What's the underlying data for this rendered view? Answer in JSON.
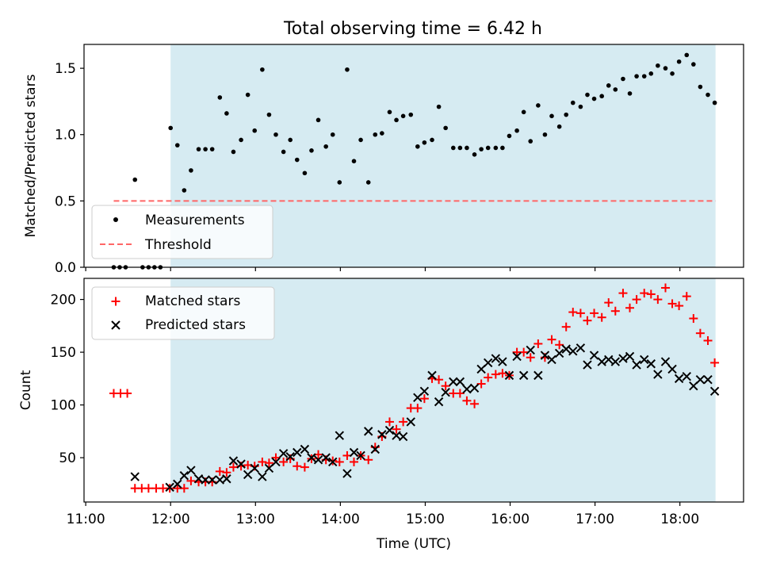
{
  "figure_title": "Total observing time = 6.42 h",
  "colors": {
    "window_fill": "#add8e6",
    "measurement": "#000000",
    "threshold": "#ff6666",
    "matched": "#ff0000",
    "predicted": "#000000"
  },
  "chart_data": [
    {
      "type": "scatter",
      "panel": "top",
      "title": "Total observing time = 6.42 h",
      "xlabel": "",
      "ylabel": "Matched/Predicted stars",
      "xlim": [
        10.98,
        18.75
      ],
      "ylim": [
        0.0,
        1.68
      ],
      "yticks": [
        0.0,
        0.5,
        1.0,
        1.5
      ],
      "ytick_labels": [
        "0.0",
        "0.5",
        "1.0",
        "1.5"
      ],
      "xticks": [
        11,
        12,
        13,
        14,
        15,
        16,
        17,
        18
      ],
      "shaded_window": [
        12.0,
        18.42
      ],
      "legend_position": "lower-left",
      "legend": [
        "Measurements",
        "Threshold"
      ],
      "threshold": {
        "name": "Threshold",
        "y": 0.5,
        "x_range": [
          11.33,
          18.42
        ]
      },
      "series": [
        {
          "name": "Measurements",
          "marker": "dot",
          "points": [
            [
              11.33,
              0.0
            ],
            [
              11.4,
              0.0
            ],
            [
              11.47,
              0.0
            ],
            [
              11.58,
              0.66
            ],
            [
              11.67,
              0.0
            ],
            [
              11.74,
              0.0
            ],
            [
              11.81,
              0.0
            ],
            [
              11.88,
              0.0
            ],
            [
              12.0,
              1.05
            ],
            [
              12.08,
              0.92
            ],
            [
              12.16,
              0.58
            ],
            [
              12.24,
              0.73
            ],
            [
              12.33,
              0.89
            ],
            [
              12.41,
              0.89
            ],
            [
              12.49,
              0.89
            ],
            [
              12.58,
              1.28
            ],
            [
              12.66,
              1.16
            ],
            [
              12.74,
              0.87
            ],
            [
              12.83,
              0.96
            ],
            [
              12.91,
              1.3
            ],
            [
              12.99,
              1.03
            ],
            [
              13.08,
              1.49
            ],
            [
              13.16,
              1.15
            ],
            [
              13.24,
              1.0
            ],
            [
              13.33,
              0.87
            ],
            [
              13.41,
              0.96
            ],
            [
              13.49,
              0.81
            ],
            [
              13.58,
              0.71
            ],
            [
              13.66,
              0.88
            ],
            [
              13.74,
              1.11
            ],
            [
              13.83,
              0.91
            ],
            [
              13.91,
              1.0
            ],
            [
              13.99,
              0.64
            ],
            [
              14.08,
              1.49
            ],
            [
              14.16,
              0.8
            ],
            [
              14.24,
              0.96
            ],
            [
              14.33,
              0.64
            ],
            [
              14.41,
              1.0
            ],
            [
              14.49,
              1.01
            ],
            [
              14.58,
              1.17
            ],
            [
              14.66,
              1.11
            ],
            [
              14.74,
              1.14
            ],
            [
              14.83,
              1.15
            ],
            [
              14.91,
              0.91
            ],
            [
              14.99,
              0.94
            ],
            [
              15.08,
              0.96
            ],
            [
              15.16,
              1.21
            ],
            [
              15.24,
              1.05
            ],
            [
              15.33,
              0.9
            ],
            [
              15.41,
              0.9
            ],
            [
              15.49,
              0.9
            ],
            [
              15.58,
              0.85
            ],
            [
              15.66,
              0.89
            ],
            [
              15.74,
              0.9
            ],
            [
              15.83,
              0.9
            ],
            [
              15.91,
              0.9
            ],
            [
              15.99,
              0.99
            ],
            [
              16.08,
              1.03
            ],
            [
              16.16,
              1.17
            ],
            [
              16.24,
              0.95
            ],
            [
              16.33,
              1.22
            ],
            [
              16.41,
              1.0
            ],
            [
              16.49,
              1.14
            ],
            [
              16.58,
              1.06
            ],
            [
              16.66,
              1.15
            ],
            [
              16.74,
              1.24
            ],
            [
              16.83,
              1.21
            ],
            [
              16.91,
              1.3
            ],
            [
              16.99,
              1.27
            ],
            [
              17.08,
              1.29
            ],
            [
              17.16,
              1.37
            ],
            [
              17.24,
              1.34
            ],
            [
              17.33,
              1.42
            ],
            [
              17.41,
              1.31
            ],
            [
              17.49,
              1.44
            ],
            [
              17.58,
              1.44
            ],
            [
              17.66,
              1.46
            ],
            [
              17.74,
              1.52
            ],
            [
              17.83,
              1.5
            ],
            [
              17.91,
              1.46
            ],
            [
              17.99,
              1.55
            ],
            [
              18.08,
              1.6
            ],
            [
              18.16,
              1.53
            ],
            [
              18.24,
              1.36
            ],
            [
              18.33,
              1.3
            ],
            [
              18.41,
              1.24
            ]
          ]
        }
      ]
    },
    {
      "type": "scatter",
      "panel": "bottom",
      "xlabel": "Time (UTC)",
      "ylabel": "Count",
      "xlim": [
        10.98,
        18.75
      ],
      "ylim": [
        8,
        220
      ],
      "yticks": [
        50,
        100,
        150,
        200
      ],
      "ytick_labels": [
        "50",
        "100",
        "150",
        "200"
      ],
      "xticks": [
        11,
        12,
        13,
        14,
        15,
        16,
        17,
        18
      ],
      "xtick_labels": [
        "11:00",
        "12:00",
        "13:00",
        "14:00",
        "15:00",
        "16:00",
        "17:00",
        "18:00"
      ],
      "shaded_window": [
        12.0,
        18.42
      ],
      "legend_position": "upper-left",
      "legend": [
        "Matched stars",
        "Predicted stars"
      ],
      "series": [
        {
          "name": "Matched stars",
          "marker": "plus",
          "points": [
            [
              11.33,
              111
            ],
            [
              11.41,
              111
            ],
            [
              11.49,
              111
            ],
            [
              11.58,
              21
            ],
            [
              11.66,
              21
            ],
            [
              11.74,
              21
            ],
            [
              11.83,
              21
            ],
            [
              11.91,
              21
            ],
            [
              11.99,
              21
            ],
            [
              12.08,
              21
            ],
            [
              12.16,
              21
            ],
            [
              12.24,
              28
            ],
            [
              12.33,
              27
            ],
            [
              12.41,
              27
            ],
            [
              12.49,
              27
            ],
            [
              12.58,
              37
            ],
            [
              12.66,
              36
            ],
            [
              12.74,
              41
            ],
            [
              12.83,
              42
            ],
            [
              12.91,
              43
            ],
            [
              12.99,
              42
            ],
            [
              13.08,
              46
            ],
            [
              13.16,
              45
            ],
            [
              13.24,
              50
            ],
            [
              13.33,
              46
            ],
            [
              13.41,
              49
            ],
            [
              13.49,
              42
            ],
            [
              13.58,
              41
            ],
            [
              13.66,
              49
            ],
            [
              13.74,
              53
            ],
            [
              13.83,
              48
            ],
            [
              13.91,
              47
            ],
            [
              13.99,
              46
            ],
            [
              14.08,
              52
            ],
            [
              14.16,
              46
            ],
            [
              14.24,
              52
            ],
            [
              14.33,
              48
            ],
            [
              14.41,
              60
            ],
            [
              14.49,
              70
            ],
            [
              14.58,
              84
            ],
            [
              14.66,
              77
            ],
            [
              14.74,
              84
            ],
            [
              14.83,
              97
            ],
            [
              14.91,
              97
            ],
            [
              14.99,
              106
            ],
            [
              15.08,
              125
            ],
            [
              15.16,
              124
            ],
            [
              15.24,
              118
            ],
            [
              15.33,
              111
            ],
            [
              15.41,
              111
            ],
            [
              15.49,
              104
            ],
            [
              15.58,
              101
            ],
            [
              15.66,
              120
            ],
            [
              15.74,
              126
            ],
            [
              15.83,
              129
            ],
            [
              15.91,
              130
            ],
            [
              15.99,
              128
            ],
            [
              16.08,
              150
            ],
            [
              16.16,
              150
            ],
            [
              16.24,
              145
            ],
            [
              16.33,
              158
            ],
            [
              16.41,
              145
            ],
            [
              16.49,
              162
            ],
            [
              16.58,
              157
            ],
            [
              16.66,
              174
            ],
            [
              16.74,
              188
            ],
            [
              16.83,
              187
            ],
            [
              16.91,
              180
            ],
            [
              16.99,
              187
            ],
            [
              17.08,
              183
            ],
            [
              17.16,
              197
            ],
            [
              17.24,
              189
            ],
            [
              17.33,
              206
            ],
            [
              17.41,
              192
            ],
            [
              17.49,
              200
            ],
            [
              17.58,
              206
            ],
            [
              17.66,
              205
            ],
            [
              17.74,
              200
            ],
            [
              17.83,
              211
            ],
            [
              17.91,
              196
            ],
            [
              17.99,
              194
            ],
            [
              18.08,
              203
            ],
            [
              18.16,
              182
            ],
            [
              18.24,
              168
            ],
            [
              18.33,
              161
            ],
            [
              18.41,
              140
            ]
          ]
        },
        {
          "name": "Predicted stars",
          "marker": "x",
          "points": [
            [
              11.58,
              32
            ],
            [
              11.99,
              22
            ],
            [
              12.08,
              25
            ],
            [
              12.16,
              33
            ],
            [
              12.24,
              38
            ],
            [
              12.33,
              30
            ],
            [
              12.41,
              29
            ],
            [
              12.49,
              29
            ],
            [
              12.58,
              29
            ],
            [
              12.66,
              30
            ],
            [
              12.74,
              47
            ],
            [
              12.83,
              44
            ],
            [
              12.91,
              34
            ],
            [
              12.99,
              40
            ],
            [
              13.08,
              32
            ],
            [
              13.16,
              40
            ],
            [
              13.24,
              46
            ],
            [
              13.33,
              54
            ],
            [
              13.41,
              51
            ],
            [
              13.49,
              55
            ],
            [
              13.58,
              58
            ],
            [
              13.66,
              50
            ],
            [
              13.74,
              48
            ],
            [
              13.83,
              50
            ],
            [
              13.91,
              46
            ],
            [
              13.99,
              71
            ],
            [
              14.08,
              35
            ],
            [
              14.16,
              55
            ],
            [
              14.24,
              52
            ],
            [
              14.33,
              75
            ],
            [
              14.41,
              58
            ],
            [
              14.49,
              72
            ],
            [
              14.58,
              76
            ],
            [
              14.66,
              71
            ],
            [
              14.74,
              70
            ],
            [
              14.83,
              84
            ],
            [
              14.91,
              107
            ],
            [
              14.99,
              113
            ],
            [
              15.08,
              128
            ],
            [
              15.16,
              103
            ],
            [
              15.24,
              112
            ],
            [
              15.33,
              122
            ],
            [
              15.41,
              122
            ],
            [
              15.49,
              115
            ],
            [
              15.58,
              116
            ],
            [
              15.66,
              134
            ],
            [
              15.74,
              140
            ],
            [
              15.83,
              144
            ],
            [
              15.91,
              141
            ],
            [
              15.99,
              128
            ],
            [
              16.08,
              146
            ],
            [
              16.16,
              128
            ],
            [
              16.24,
              152
            ],
            [
              16.33,
              128
            ],
            [
              16.41,
              147
            ],
            [
              16.49,
              143
            ],
            [
              16.58,
              149
            ],
            [
              16.66,
              153
            ],
            [
              16.74,
              151
            ],
            [
              16.83,
              154
            ],
            [
              16.91,
              138
            ],
            [
              16.99,
              147
            ],
            [
              17.08,
              141
            ],
            [
              17.16,
              143
            ],
            [
              17.24,
              141
            ],
            [
              17.33,
              144
            ],
            [
              17.41,
              146
            ],
            [
              17.49,
              138
            ],
            [
              17.58,
              143
            ],
            [
              17.66,
              139
            ],
            [
              17.74,
              129
            ],
            [
              17.83,
              141
            ],
            [
              17.91,
              134
            ],
            [
              17.99,
              125
            ],
            [
              18.08,
              127
            ],
            [
              18.16,
              118
            ],
            [
              18.24,
              124
            ],
            [
              18.33,
              124
            ],
            [
              18.41,
              113
            ]
          ]
        }
      ]
    }
  ]
}
